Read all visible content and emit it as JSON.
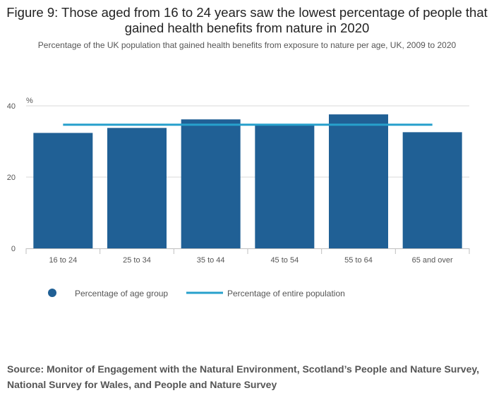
{
  "chart_data": {
    "type": "bar",
    "title": "Figure 9: Those aged from 16 to 24 years saw the lowest percentage of people that gained health benefits from nature in 2020",
    "subtitle": "Percentage of the UK population that gained health benefits from exposure to nature per age, UK, 2009 to 2020",
    "ylabel": "%",
    "ylim": [
      0,
      40
    ],
    "yticks": [
      0,
      20,
      40
    ],
    "categories": [
      "16 to 24",
      "25 to 34",
      "35 to 44",
      "45 to 54",
      "55 to 64",
      "65 and over"
    ],
    "series": [
      {
        "name": "Percentage of age group",
        "type": "bar",
        "values": [
          32.4,
          33.8,
          36.2,
          34.9,
          37.6,
          32.6
        ]
      },
      {
        "name": "Percentage of entire population",
        "type": "line",
        "value": 34.7
      }
    ],
    "legend_position": "bottom-left",
    "colors": {
      "bar": "#206095",
      "line": "#27a0cc",
      "grid": "#d9d9d9"
    }
  },
  "source": "Source: Monitor of Engagement with the Natural Environment, Scotland’s People and Nature Survey, National Survey for Wales, and People and Nature Survey"
}
